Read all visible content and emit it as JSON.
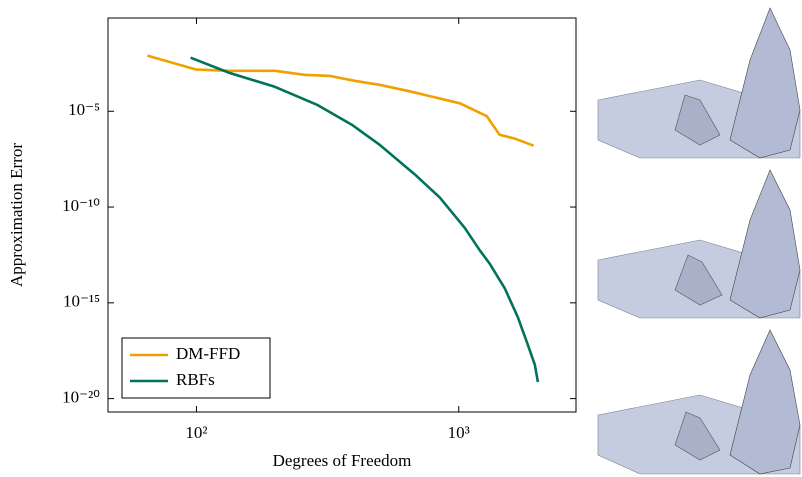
{
  "chart_data": {
    "type": "line",
    "xlabel": "Degrees of Freedom",
    "ylabel": "Approximation Error",
    "log_x": true,
    "log_y": true,
    "grid": false,
    "legend": "lower left",
    "xlim": [
      46,
      2800
    ],
    "ylim": [
      2e-21,
      0.74
    ],
    "xticks": [
      {
        "value": 100,
        "label": "10²"
      },
      {
        "value": 1000,
        "label": "10³"
      }
    ],
    "yticks": [
      {
        "value": 1e-05,
        "label": "10⁻⁵"
      },
      {
        "value": 1e-10,
        "label": "10⁻¹⁰"
      },
      {
        "value": 1e-15,
        "label": "10⁻¹⁵"
      },
      {
        "value": 1e-20,
        "label": "10⁻²⁰"
      }
    ],
    "series": [
      {
        "name": "DM-FFD",
        "color": "#f0a000",
        "x": [
          65,
          100,
          134,
          199,
          258,
          322,
          401,
          499,
          650,
          775,
          1010,
          1280,
          1430,
          1640,
          1930
        ],
        "values": [
          0.0081,
          0.0015,
          0.0013,
          0.0013,
          0.0008,
          0.0007,
          0.00039,
          0.00024,
          0.00011,
          6.2e-05,
          2.6e-05,
          5.5e-06,
          6e-07,
          3.7e-07,
          1.6e-07
        ]
      },
      {
        "name": "RBFs",
        "color": "#00735a",
        "x": [
          95,
          134,
          199,
          290,
          391,
          499,
          679,
          846,
          1054,
          1202,
          1313,
          1500,
          1680,
          1833,
          1950,
          2004
        ],
        "values": [
          0.0063,
          0.001,
          0.00019,
          2.1e-05,
          2e-06,
          1.8e-07,
          5.2e-09,
          3.2e-10,
          8.3e-12,
          5.6e-13,
          1.1e-13,
          5.5e-15,
          1.8e-16,
          6.8e-18,
          5.9e-19,
          7.4e-20
        ]
      }
    ]
  }
}
